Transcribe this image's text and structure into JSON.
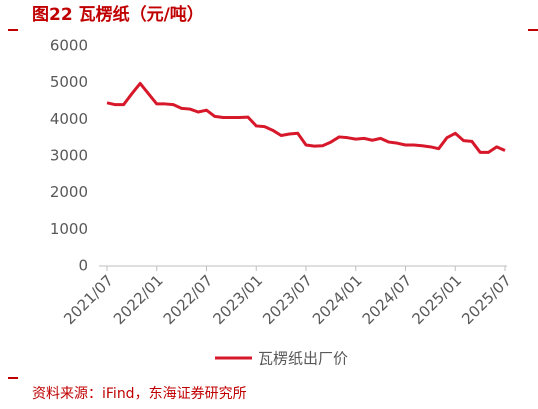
{
  "chart_data": {
    "type": "line",
    "title": "图22  瓦楞纸（元/吨）",
    "source": "资料来源：iFind，东海证券研究所",
    "categories": [
      "2021/07",
      null,
      null,
      null,
      null,
      null,
      "2022/01",
      null,
      null,
      null,
      null,
      null,
      "2022/07",
      null,
      null,
      null,
      null,
      null,
      "2023/01",
      null,
      null,
      null,
      null,
      null,
      "2023/07",
      null,
      null,
      null,
      null,
      null,
      "2024/01",
      null,
      null,
      null,
      null,
      null,
      "2024/07",
      null,
      null,
      null,
      null,
      null,
      "2025/01",
      null,
      null,
      null,
      null,
      null,
      "2025/07"
    ],
    "series": [
      {
        "name": "瓦楞纸出厂价",
        "color": "#d7182a",
        "values": [
          4450,
          4400,
          4400,
          4700,
          4980,
          4700,
          4420,
          4420,
          4400,
          4300,
          4280,
          4200,
          4250,
          4080,
          4050,
          4050,
          4050,
          4060,
          3820,
          3800,
          3700,
          3560,
          3600,
          3620,
          3300,
          3270,
          3280,
          3380,
          3520,
          3500,
          3460,
          3480,
          3430,
          3480,
          3380,
          3350,
          3300,
          3300,
          3280,
          3250,
          3200,
          3500,
          3620,
          3420,
          3400,
          3100,
          3100,
          3250,
          3150
        ]
      }
    ],
    "ylim": [
      0,
      6000
    ],
    "yticks": [
      0,
      1000,
      2000,
      3000,
      4000,
      5000,
      6000
    ],
    "grid": false
  }
}
